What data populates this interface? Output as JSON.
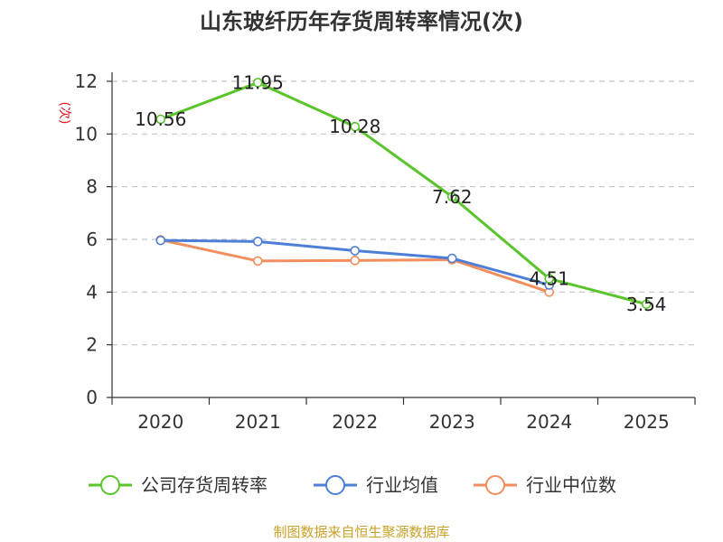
{
  "chart_data": {
    "type": "line",
    "title": "山东玻纤历年存货周转率情况(次)",
    "ylabel": "(次)",
    "categories": [
      "2020",
      "2021",
      "2022",
      "2023",
      "2024",
      "2025"
    ],
    "ylim": [
      0,
      12
    ],
    "yticks": [
      0,
      2,
      4,
      6,
      8,
      10,
      12
    ],
    "grid": true,
    "legend_position": "bottom",
    "series": [
      {
        "name": "公司存货周转率",
        "color": "#5ac52a",
        "values": [
          10.56,
          11.95,
          10.28,
          7.62,
          4.51,
          3.54
        ],
        "labels": [
          "10.56",
          "11.95",
          "10.28",
          "7.62",
          "4.51",
          "3.54"
        ]
      },
      {
        "name": "行业均值",
        "color": "#4e7fd6",
        "values": [
          5.96,
          5.92,
          5.57,
          5.28,
          4.27,
          null
        ]
      },
      {
        "name": "行业中位数",
        "color": "#f28e5d",
        "values": [
          5.98,
          5.18,
          5.2,
          5.23,
          4.0,
          null
        ]
      }
    ],
    "source": "制图数据来自恒生聚源数据库"
  }
}
